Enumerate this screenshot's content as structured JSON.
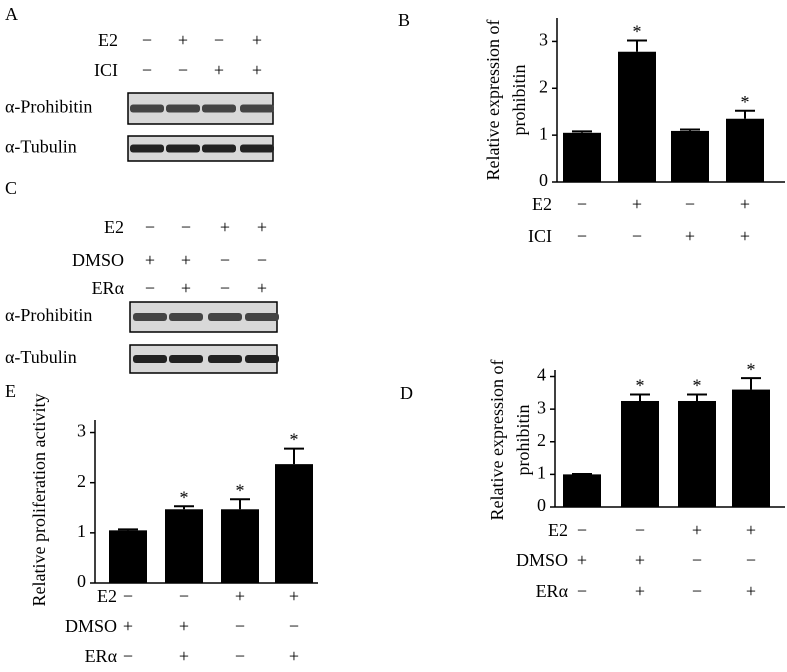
{
  "blots": [
    {
      "panel": "A",
      "conditions": [
        {
          "label": "E2",
          "signs": [
            "−",
            "+",
            "−",
            "+"
          ]
        },
        {
          "label": "ICI",
          "signs": [
            "−",
            "−",
            "+",
            "+"
          ]
        }
      ],
      "bands": [
        "α-Prohibitin",
        "α-Tubulin"
      ]
    },
    {
      "panel": "C",
      "conditions": [
        {
          "label": "E2",
          "signs": [
            "−",
            "−",
            "+",
            "+"
          ]
        },
        {
          "label": "DMSO",
          "signs": [
            "+",
            "+",
            "−",
            "−"
          ]
        },
        {
          "label": "ERα",
          "signs": [
            "−",
            "+",
            "−",
            "+"
          ]
        }
      ],
      "bands": [
        "α-Prohibitin",
        "α-Tubulin"
      ]
    }
  ],
  "chart_data": [
    {
      "type": "bar",
      "panel": "B",
      "ylabel": [
        "Relative expression of",
        "prohibitin"
      ],
      "values": [
        1.05,
        2.78,
        1.09,
        1.35
      ],
      "errors": [
        0.03,
        0.24,
        0.03,
        0.17
      ],
      "star_labels": [
        null,
        "*",
        null,
        "*"
      ],
      "color": "#000000",
      "ylim": [
        0,
        3.5
      ],
      "yticks": [
        0,
        1,
        2,
        3
      ],
      "conditions": [
        {
          "label": "E2",
          "signs": [
            "−",
            "+",
            "−",
            "+"
          ]
        },
        {
          "label": "ICI",
          "signs": [
            "−",
            "−",
            "+",
            "+"
          ]
        }
      ]
    },
    {
      "type": "bar",
      "panel": "D",
      "ylabel": [
        "Relative expression of",
        "prohibitin"
      ],
      "values": [
        1.0,
        3.25,
        3.25,
        3.6
      ],
      "errors": [
        0.01,
        0.2,
        0.2,
        0.35
      ],
      "star_labels": [
        null,
        "*",
        "*",
        "*"
      ],
      "color": "#000000",
      "ylim": [
        0,
        4.2
      ],
      "yticks": [
        0,
        1,
        2,
        3,
        4
      ],
      "conditions": [
        {
          "label": "E2",
          "signs": [
            "−",
            "−",
            "+",
            "+"
          ]
        },
        {
          "label": "DMSO",
          "signs": [
            "+",
            "+",
            "−",
            "−"
          ]
        },
        {
          "label": "ERα",
          "signs": [
            "−",
            "+",
            "−",
            "+"
          ]
        }
      ]
    },
    {
      "type": "bar",
      "panel": "E",
      "ylabel": [
        "Relative proliferation activity"
      ],
      "values": [
        1.05,
        1.47,
        1.47,
        2.37
      ],
      "errors": [
        0.02,
        0.06,
        0.2,
        0.31
      ],
      "star_labels": [
        null,
        "*",
        "*",
        "*"
      ],
      "color": "#000000",
      "ylim": [
        0,
        3.25
      ],
      "yticks": [
        0,
        1,
        2,
        3
      ],
      "conditions": [
        {
          "label": "E2",
          "signs": [
            "−",
            "−",
            "+",
            "+"
          ]
        },
        {
          "label": "DMSO",
          "signs": [
            "+",
            "+",
            "−",
            "−"
          ]
        },
        {
          "label": "ERα",
          "signs": [
            "−",
            "+",
            "−",
            "+"
          ]
        }
      ]
    }
  ]
}
